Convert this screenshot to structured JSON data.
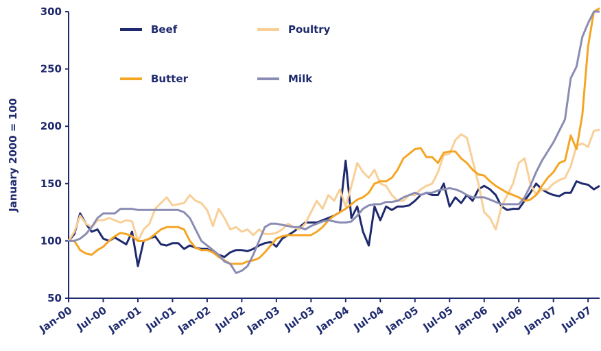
{
  "chart_data": {
    "type": "line",
    "y_label": "January 2000 = 100",
    "categories": [
      "Jan-00",
      null,
      null,
      null,
      null,
      null,
      "Jul-00",
      null,
      null,
      null,
      null,
      null,
      "Jan-01",
      null,
      null,
      null,
      null,
      null,
      "Jul-01",
      null,
      null,
      null,
      null,
      null,
      "Jan-02",
      null,
      null,
      null,
      null,
      null,
      "Jul-02",
      null,
      null,
      null,
      null,
      null,
      "Jan-03",
      null,
      null,
      null,
      null,
      null,
      "Jul-03",
      null,
      null,
      null,
      null,
      null,
      "Jan-04",
      null,
      null,
      null,
      null,
      null,
      "Jul-04",
      null,
      null,
      null,
      null,
      null,
      "Jan-05",
      null,
      null,
      null,
      null,
      null,
      "Jul-05",
      null,
      null,
      null,
      null,
      null,
      "Jan-06",
      null,
      null,
      null,
      null,
      null,
      "Jul-06",
      null,
      null,
      null,
      null,
      null,
      "Jan-07",
      null,
      null,
      null,
      null,
      null,
      "Jul-07",
      null,
      null
    ],
    "series": [
      {
        "name": "Beef",
        "color": "#1f2a6e",
        "values": [
          100,
          106,
          124,
          115,
          108,
          110,
          102,
          100,
          103,
          100,
          97,
          108,
          78,
          100,
          102,
          104,
          97,
          96,
          98,
          98,
          93,
          96,
          94,
          93,
          93,
          90,
          88,
          86,
          90,
          92,
          92,
          91,
          93,
          96,
          98,
          99,
          95,
          102,
          105,
          108,
          112,
          116,
          116,
          116,
          118,
          120,
          122,
          125,
          170,
          120,
          130,
          108,
          96,
          130,
          118,
          130,
          127,
          130,
          130,
          131,
          135,
          140,
          142,
          140,
          140,
          150,
          130,
          138,
          133,
          140,
          135,
          145,
          148,
          145,
          140,
          130,
          127,
          128,
          128,
          135,
          142,
          150,
          145,
          142,
          140,
          139,
          142,
          142,
          152,
          150,
          149,
          145,
          148
        ]
      },
      {
        "name": "Poultry",
        "color": "#f9cf98",
        "values": [
          100,
          108,
          122,
          115,
          112,
          118,
          118,
          120,
          118,
          116,
          118,
          117,
          100,
          110,
          115,
          128,
          133,
          138,
          131,
          132,
          133,
          140,
          135,
          133,
          127,
          113,
          128,
          120,
          110,
          112,
          108,
          110,
          105,
          110,
          106,
          106,
          107,
          110,
          115,
          112,
          110,
          115,
          125,
          135,
          128,
          140,
          135,
          145,
          130,
          148,
          168,
          160,
          155,
          162,
          150,
          148,
          140,
          135,
          135,
          140,
          140,
          145,
          148,
          150,
          160,
          175,
          176,
          188,
          193,
          190,
          170,
          150,
          125,
          120,
          110,
          130,
          140,
          150,
          168,
          172,
          150,
          140,
          145,
          145,
          150,
          153,
          155,
          165,
          183,
          185,
          182,
          196,
          197
        ]
      },
      {
        "name": "Butter",
        "color": "#f5a524",
        "values": [
          100,
          100,
          92,
          89,
          88,
          92,
          95,
          100,
          104,
          107,
          106,
          104,
          100,
          100,
          102,
          106,
          110,
          112,
          112,
          112,
          110,
          100,
          94,
          92,
          92,
          90,
          86,
          83,
          80,
          80,
          80,
          82,
          83,
          85,
          90,
          96,
          102,
          104,
          105,
          105,
          105,
          105,
          105,
          108,
          112,
          118,
          122,
          125,
          128,
          132,
          136,
          138,
          142,
          150,
          152,
          152,
          155,
          162,
          172,
          176,
          180,
          181,
          173,
          173,
          168,
          177,
          178,
          178,
          172,
          168,
          162,
          158,
          157,
          152,
          148,
          145,
          142,
          140,
          138,
          135,
          136,
          140,
          148,
          155,
          160,
          168,
          170,
          192,
          180,
          210,
          270,
          300,
          303
        ]
      },
      {
        "name": "Milk",
        "color": "#8a8cb3",
        "values": [
          100,
          100,
          102,
          106,
          112,
          120,
          124,
          124,
          124,
          128,
          128,
          128,
          127,
          127,
          127,
          127,
          127,
          127,
          127,
          127,
          125,
          120,
          110,
          100,
          96,
          92,
          88,
          82,
          80,
          72,
          74,
          78,
          88,
          100,
          112,
          115,
          115,
          114,
          113,
          112,
          112,
          110,
          113,
          115,
          117,
          118,
          117,
          116,
          116,
          117,
          122,
          128,
          131,
          132,
          132,
          134,
          134,
          135,
          138,
          140,
          142,
          140,
          142,
          142,
          144,
          145,
          146,
          145,
          143,
          140,
          138,
          138,
          138,
          136,
          134,
          132,
          132,
          132,
          132,
          138,
          148,
          160,
          170,
          178,
          186,
          196,
          206,
          242,
          252,
          278,
          290,
          300,
          300
        ]
      }
    ],
    "ylim": [
      50,
      300
    ],
    "yticks": [
      50,
      100,
      150,
      200,
      250,
      300
    ],
    "grid": false,
    "legend": "upper left"
  }
}
